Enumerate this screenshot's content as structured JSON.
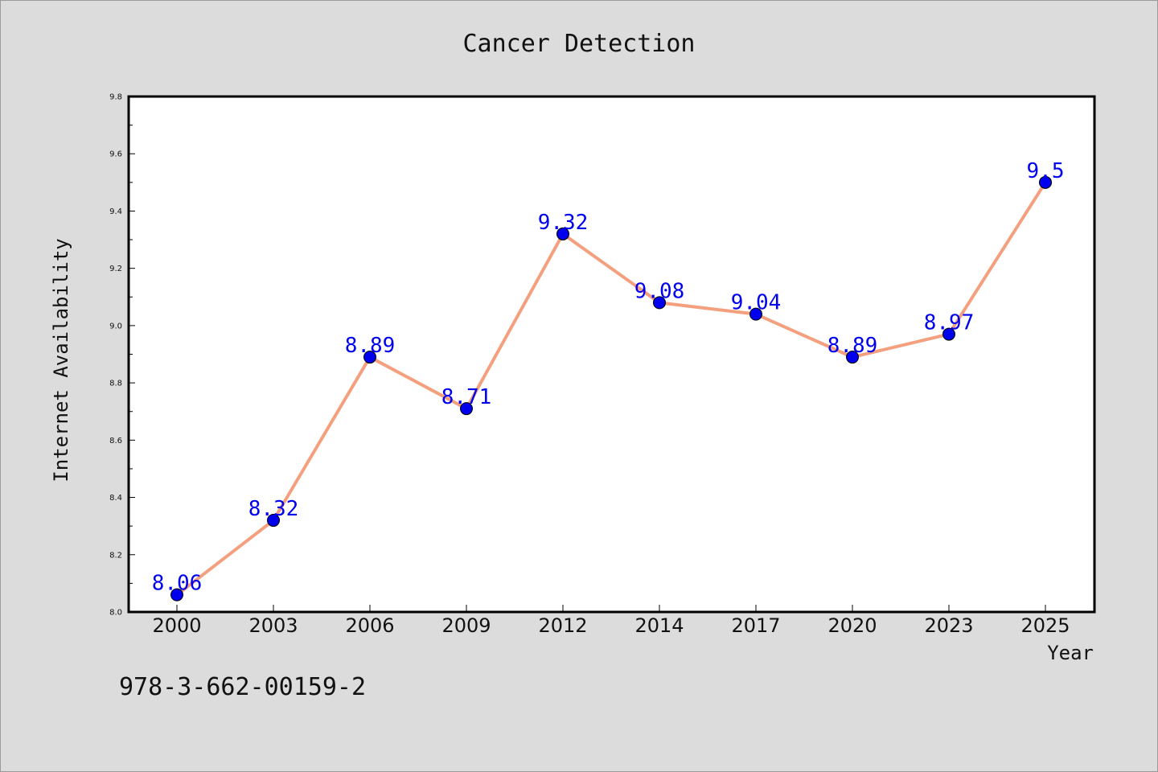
{
  "chart_data": {
    "type": "line",
    "title": "Cancer Detection",
    "xlabel": "Year",
    "ylabel": "Internet Availability",
    "categories": [
      "2000",
      "2003",
      "2006",
      "2009",
      "2012",
      "2014",
      "2017",
      "2020",
      "2023",
      "2025"
    ],
    "series": [
      {
        "values": [
          8.06,
          8.32,
          8.89,
          8.71,
          9.32,
          9.08,
          9.04,
          8.89,
          8.97,
          9.5
        ]
      }
    ],
    "data_labels": [
      "8.06",
      "8.32",
      "8.89",
      "8.71",
      "9.32",
      "9.08",
      "9.04",
      "8.89",
      "8.97",
      "9.5"
    ],
    "ylim": [
      8.0,
      9.8
    ],
    "yticks": [
      "8.0",
      "8.2",
      "8.4",
      "8.6",
      "8.8",
      "9.0",
      "9.2",
      "9.4",
      "9.6",
      "9.8"
    ],
    "grid": false,
    "line_color": "#f4a07e",
    "marker_color": "#0000ee",
    "label_color": "#0000ee",
    "background_color": "#dcdcdc",
    "plot_background": "#ffffff"
  },
  "footer": {
    "isbn": "978-3-662-00159-2"
  }
}
